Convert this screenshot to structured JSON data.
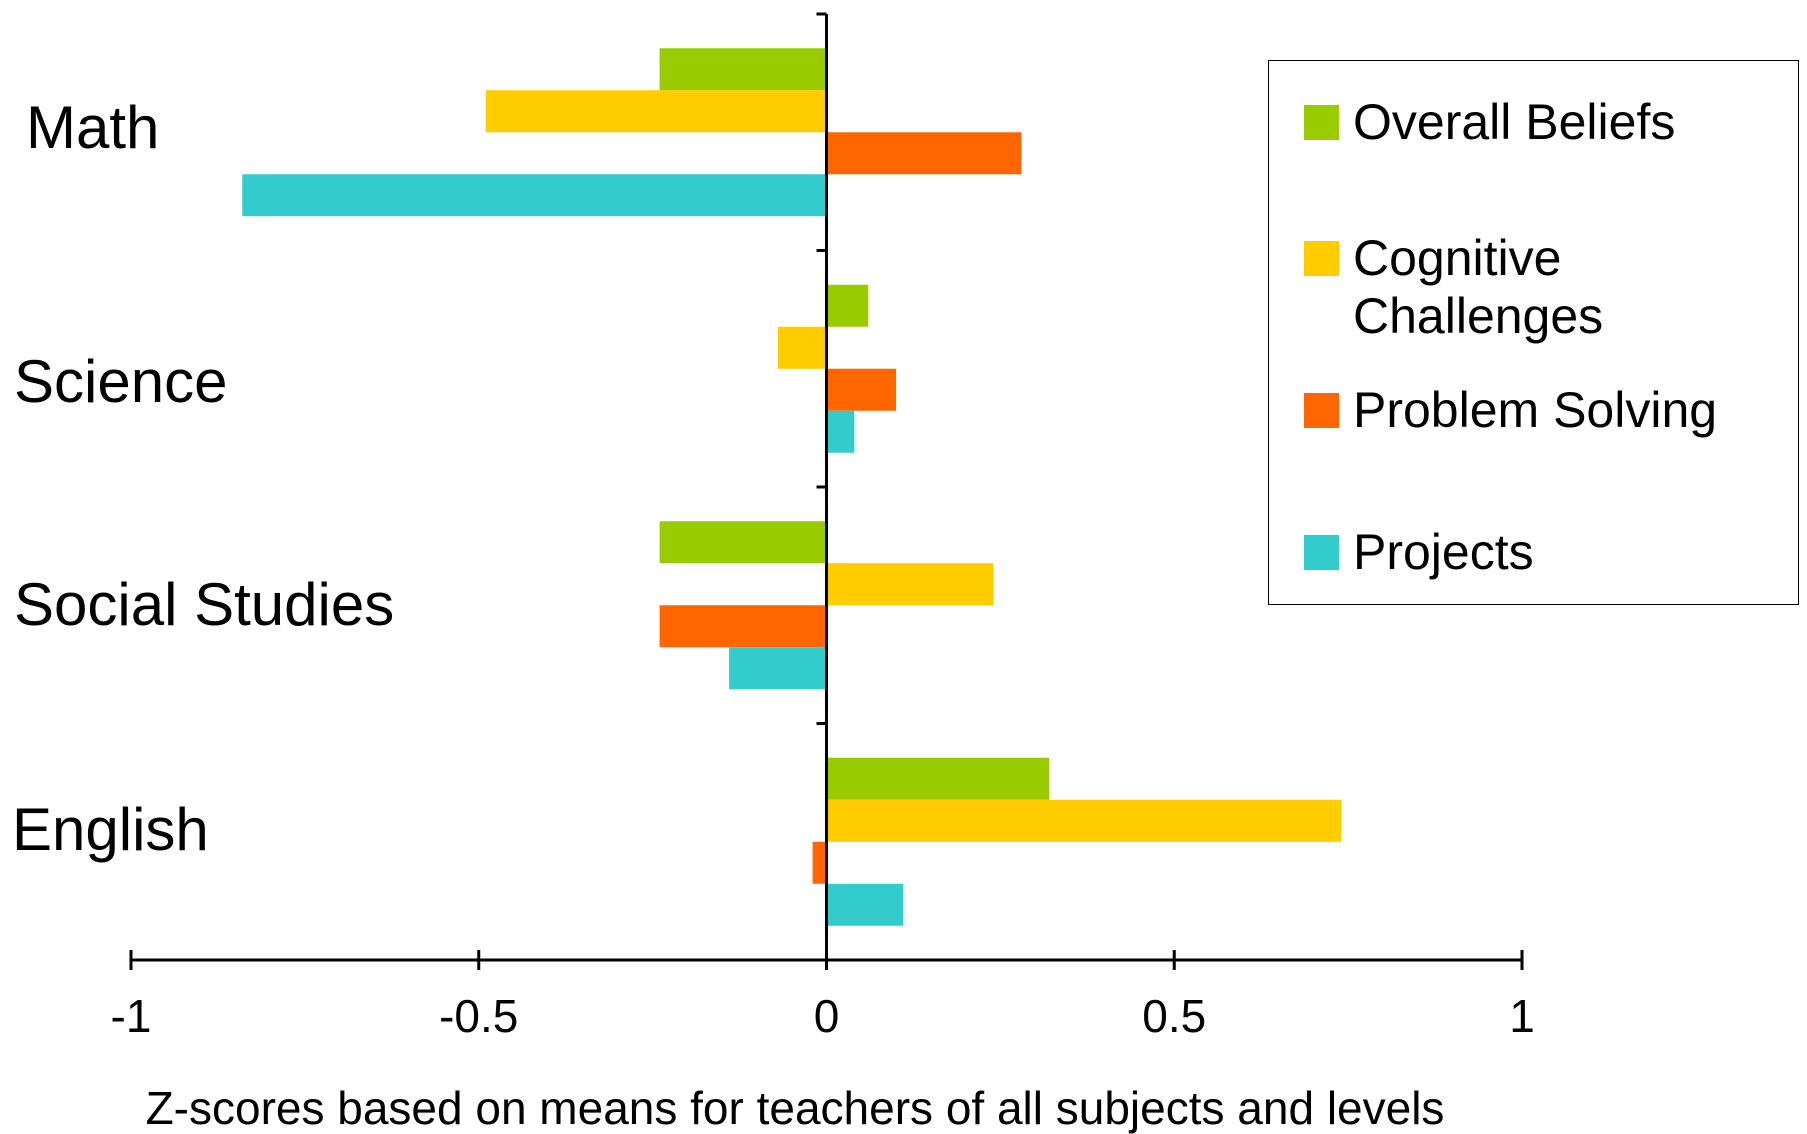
{
  "chart_data": {
    "type": "bar",
    "orientation": "horizontal",
    "categories": [
      "Math",
      "Science",
      "Social Studies",
      "English"
    ],
    "series": [
      {
        "name": "Overall Beliefs",
        "color": "#99CC00",
        "values": [
          -0.24,
          0.06,
          -0.24,
          0.32
        ]
      },
      {
        "name": "Cognitive\nChallenges",
        "color": "#FFCC00",
        "values": [
          -0.49,
          -0.07,
          0.24,
          0.74
        ]
      },
      {
        "name": "Problem Solving",
        "color": "#FF6600",
        "values": [
          0.28,
          0.1,
          -0.24,
          -0.02
        ]
      },
      {
        "name": "Projects",
        "color": "#33CCCC",
        "values": [
          -0.84,
          0.04,
          -0.14,
          0.11
        ]
      }
    ],
    "xlabel": "Z-scores based on means for teachers of all subjects and levels",
    "ylabel": "",
    "xlim": [
      -1,
      1
    ],
    "xticks": [
      "-1",
      "-0.5",
      "0",
      "0.5",
      "1"
    ],
    "grid": false,
    "legend_position": "top-right"
  }
}
